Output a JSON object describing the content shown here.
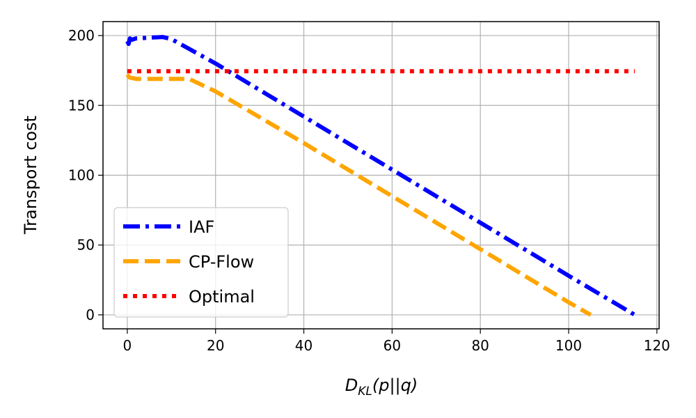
{
  "chart_data": {
    "type": "line",
    "title": "",
    "xlabel": {
      "main": "D",
      "sub": "KL",
      "rest": "(p||q)"
    },
    "ylabel": "Transport cost",
    "xlim": [
      -5.5,
      120.5
    ],
    "ylim": [
      -10,
      210
    ],
    "xticks": [
      0,
      20,
      40,
      60,
      80,
      100,
      120
    ],
    "yticks": [
      0,
      50,
      100,
      150,
      200
    ],
    "grid": true,
    "legend_position": "lower-left",
    "series": [
      {
        "name": "IAF",
        "color": "#0000ff",
        "style": "dashdot",
        "x": [
          0,
          0.3,
          0.6,
          1,
          2,
          5,
          8,
          10,
          20,
          40,
          60,
          80,
          100,
          115
        ],
        "y": [
          196,
          194,
          198,
          197,
          198,
          198.5,
          199,
          197.5,
          180,
          142,
          104,
          66,
          28,
          0
        ]
      },
      {
        "name": "CP-Flow",
        "color": "#ffa500",
        "style": "dashed",
        "x": [
          0,
          0.5,
          2,
          5,
          10,
          14,
          20,
          40,
          60,
          80,
          100,
          105
        ],
        "y": [
          172,
          170,
          169,
          169,
          169,
          169,
          160,
          123,
          85,
          47,
          9,
          0
        ]
      },
      {
        "name": "Optimal",
        "color": "#ff0000",
        "style": "dotted",
        "x": [
          0,
          115
        ],
        "y": [
          174.5,
          174.5
        ]
      }
    ]
  }
}
